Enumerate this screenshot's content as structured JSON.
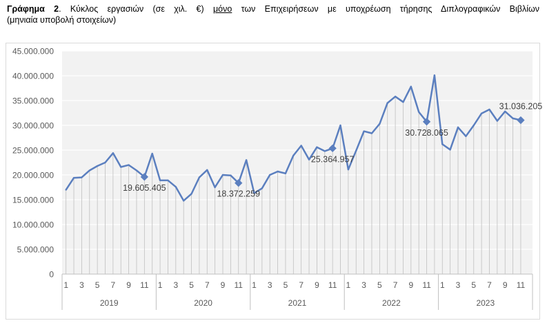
{
  "caption": {
    "label": "Γράφημα 2",
    "sep": ". ",
    "text_before": "Κύκλος εργασιών (σε χιλ. €) ",
    "underlined": "μόνο",
    "text_after": " των Επιχειρήσεων με υποχρέωση τήρησης Διπλογραφικών Βιβλίων",
    "line2": "(μηνιαία υποβολή στοιχείων)"
  },
  "colors": {
    "line": "#5b7fbf",
    "plot_bg": "#f2f2f2",
    "grid": "#ffffff",
    "drop_lines": "#bfbfbf",
    "axis": "#bfbfbf"
  },
  "chart_data": {
    "type": "line",
    "y_ticks": [
      "0",
      "5.000.000",
      "10.000.000",
      "15.000.000",
      "20.000.000",
      "25.000.000",
      "30.000.000",
      "35.000.000",
      "40.000.000",
      "45.000.000"
    ],
    "ylim": [
      0,
      45000000
    ],
    "x_month_labels": [
      "1",
      "3",
      "5",
      "7",
      "9",
      "11"
    ],
    "years": [
      "2019",
      "2020",
      "2021",
      "2022",
      "2023"
    ],
    "months_per_year": 12,
    "series": [
      {
        "values": [
          17000000,
          19400000,
          19500000,
          20900000,
          21800000,
          22500000,
          24400000,
          21600000,
          22000000,
          20900000,
          19605405,
          24300000,
          18900000,
          18900000,
          17600000,
          14800000,
          16200000,
          19500000,
          21000000,
          17500000,
          20000000,
          19900000,
          18372259,
          23000000,
          16300000,
          17300000,
          20000000,
          20700000,
          20300000,
          23900000,
          25900000,
          23100000,
          25600000,
          24800000,
          25364957,
          30000000,
          21100000,
          24900000,
          28800000,
          28400000,
          30300000,
          34500000,
          35800000,
          34700000,
          37800000,
          32700000,
          30728065,
          40100000,
          26200000,
          25100000,
          29600000,
          27800000,
          30000000,
          32400000,
          33200000,
          30900000,
          32800000,
          31400000,
          31036205
        ]
      }
    ],
    "annotations": [
      {
        "index": 10,
        "label": "19.605.405",
        "pos": "below"
      },
      {
        "index": 22,
        "label": "18.372.259",
        "pos": "below"
      },
      {
        "index": 34,
        "label": "25.364.957",
        "pos": "below"
      },
      {
        "index": 46,
        "label": "30.728.065",
        "pos": "below"
      },
      {
        "index": 58,
        "label": "31.036.205",
        "pos": "above"
      }
    ]
  }
}
